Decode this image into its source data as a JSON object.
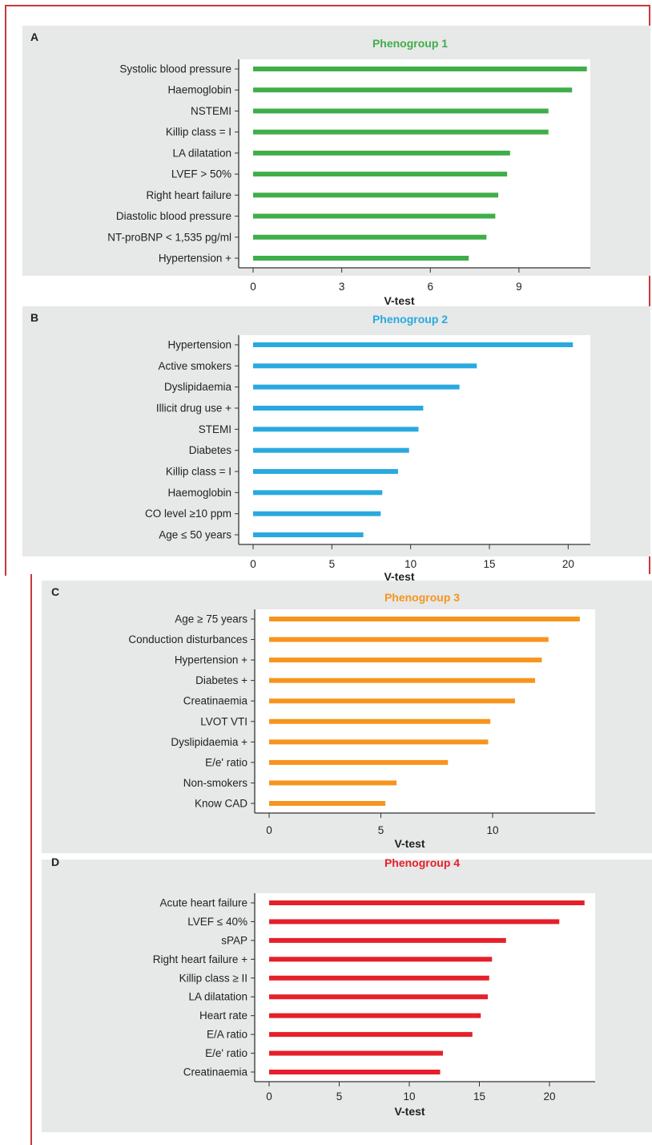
{
  "colors": {
    "frame": "#c8383c",
    "panel_background": "#e7e8e8",
    "plot_background": "#ffffff"
  },
  "chart_data": [
    {
      "panel_letter": "A",
      "type": "bar",
      "orientation": "horizontal",
      "title": "Phenogroup 1",
      "color": "#3fae49",
      "xlabel": "V-test",
      "ylabel": "",
      "xlim": [
        0,
        11.2
      ],
      "xticks": [
        0,
        3,
        6,
        9
      ],
      "categories": [
        "Systolic blood pressure",
        "Haemoglobin",
        "NSTEMI",
        "Killip class = I",
        "LA dilatation",
        "LVEF > 50%",
        "Right heart failure",
        "Diastolic blood pressure",
        "NT-proBNP < 1,535 pg/ml",
        "Hypertension +"
      ],
      "values": [
        11.3,
        10.8,
        10.0,
        10.0,
        8.7,
        8.6,
        8.3,
        8.2,
        7.9,
        7.3
      ],
      "grid": false
    },
    {
      "panel_letter": "B",
      "type": "bar",
      "orientation": "horizontal",
      "title": "Phenogroup 2",
      "color": "#29a9df",
      "xlabel": "V-test",
      "ylabel": "",
      "xlim": [
        0,
        21
      ],
      "xticks": [
        0,
        5,
        10,
        15,
        20
      ],
      "categories": [
        "Hypertension",
        "Active smokers",
        "Dyslipidaemia",
        "Illicit drug use +",
        "STEMI",
        "Diabetes",
        "Killip class = I",
        "Haemoglobin",
        "CO level ≥10 ppm",
        "Age ≤ 50 years"
      ],
      "values": [
        20.3,
        14.2,
        13.1,
        10.8,
        10.5,
        9.9,
        9.2,
        8.2,
        8.1,
        7.0
      ],
      "grid": false
    },
    {
      "panel_letter": "C",
      "type": "bar",
      "orientation": "horizontal",
      "title": "Phenogroup 3",
      "color": "#f7941d",
      "xlabel": "V-test",
      "ylabel": "",
      "xlim": [
        0,
        14.3
      ],
      "xticks": [
        0,
        5,
        10
      ],
      "categories": [
        "Age ≥ 75 years",
        "Conduction disturbances",
        "Hypertension +",
        "Diabetes +",
        "Creatinaemia",
        "LVOT VTI",
        "Dyslipidaemia +",
        "E/e' ratio",
        "Non-smokers",
        "Know CAD"
      ],
      "values": [
        13.9,
        12.5,
        12.2,
        11.9,
        11.0,
        9.9,
        9.8,
        8.0,
        5.7,
        5.2
      ],
      "grid": false
    },
    {
      "panel_letter": "D",
      "type": "bar",
      "orientation": "horizontal",
      "title": "Phenogroup 4",
      "color": "#e5202a",
      "xlabel": "V-test",
      "ylabel": "",
      "xlim": [
        0,
        22.8
      ],
      "xticks": [
        0,
        5,
        10,
        15,
        20
      ],
      "categories": [
        "Acute heart failure",
        "LVEF ≤ 40%",
        "sPAP",
        "Right heart failure +",
        "Killip class ≥ II",
        "LA dilatation",
        "Heart rate",
        "E/A ratio",
        "E/e' ratio",
        "Creatinaemia"
      ],
      "values": [
        22.5,
        20.7,
        16.9,
        15.9,
        15.7,
        15.6,
        15.1,
        14.5,
        12.4,
        12.2
      ],
      "grid": false
    }
  ]
}
